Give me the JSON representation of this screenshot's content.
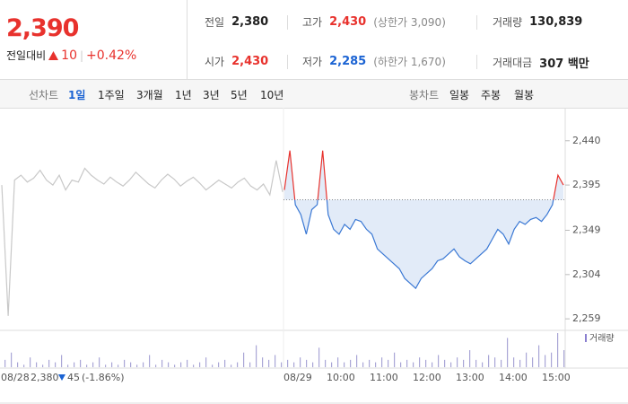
{
  "quote": {
    "price": "2,390",
    "change_label": "전일대비",
    "change": "10",
    "change_rate": "+0.42%"
  },
  "stats": [
    {
      "label": "전일",
      "value": "2,380"
    },
    {
      "label": "고가",
      "value": "2,430",
      "note": "(상한가 3,090)"
    },
    {
      "label": "거래량",
      "value": "130,839"
    },
    {
      "label": "시가",
      "value": "2,430"
    },
    {
      "label": "저가",
      "value": "2,285",
      "note": "(하한가 1,670)"
    },
    {
      "label": "거래대금",
      "value": "307 백만"
    }
  ],
  "line_tabs": {
    "label": "선차트",
    "items": [
      "1일",
      "1주일",
      "3개월",
      "1년",
      "3년",
      "5년",
      "10년"
    ]
  },
  "candle_tabs": {
    "label": "봉차트",
    "items": [
      "일봉",
      "주봉",
      "월봉"
    ]
  },
  "summary": {
    "close": "2,380",
    "change": "45",
    "rate": "(-1.86%)"
  },
  "chart_data": {
    "type": "line",
    "x_labels": [
      "08/28",
      "08/29",
      "10:00",
      "11:00",
      "12:00",
      "13:00",
      "14:00",
      "15:00"
    ],
    "ylim": [
      2250,
      2469
    ],
    "yticks": [
      {
        "value": 2440,
        "label": "2,440"
      },
      {
        "value": 2395,
        "label": "2,395"
      },
      {
        "value": 2349,
        "label": "2,349"
      },
      {
        "value": 2304,
        "label": "2,304"
      },
      {
        "value": 2259,
        "label": "2,259"
      }
    ],
    "reference_line": 2380,
    "series": [
      {
        "color": "#c8c8c8",
        "values": [
          2395,
          2262,
          2400,
          2405,
          2398,
          2402,
          2410,
          2400,
          2395,
          2405,
          2390,
          2400,
          2398,
          2412,
          2405,
          2400,
          2396,
          2403,
          2398,
          2394,
          2400,
          2408,
          2402,
          2396,
          2392,
          2400,
          2406,
          2401,
          2394,
          2399,
          2403,
          2397,
          2390,
          2395,
          2400,
          2396,
          2392,
          2398,
          2402,
          2394,
          2390,
          2396,
          2385,
          2420,
          2388
        ]
      },
      {
        "color": "#3a78d4",
        "up_color": "#e8322d",
        "values": [
          2390,
          2430,
          2375,
          2365,
          2345,
          2370,
          2375,
          2430,
          2365,
          2350,
          2345,
          2355,
          2350,
          2360,
          2358,
          2350,
          2345,
          2330,
          2325,
          2320,
          2315,
          2310,
          2300,
          2295,
          2290,
          2300,
          2305,
          2310,
          2318,
          2320,
          2325,
          2330,
          2322,
          2318,
          2315,
          2320,
          2325,
          2330,
          2340,
          2350,
          2345,
          2335,
          2350,
          2358,
          2355,
          2360,
          2362,
          2358,
          2365,
          2375,
          2405,
          2395
        ]
      }
    ],
    "volume": {
      "name": "거래량",
      "color": "#a9a6d6",
      "values": [
        3,
        6,
        2,
        1,
        4,
        2,
        1,
        3,
        2,
        5,
        1,
        2,
        3,
        1,
        2,
        4,
        1,
        2,
        1,
        3,
        2,
        1,
        2,
        5,
        1,
        3,
        2,
        1,
        2,
        3,
        1,
        2,
        4,
        1,
        2,
        3,
        1,
        2,
        6,
        2,
        9,
        4,
        3,
        5,
        2,
        3,
        2,
        4,
        3,
        2,
        8,
        3,
        2,
        4,
        2,
        3,
        5,
        2,
        3,
        2,
        4,
        3,
        6,
        2,
        3,
        2,
        4,
        3,
        2,
        5,
        3,
        2,
        4,
        3,
        7,
        3,
        2,
        5,
        4,
        3,
        12,
        4,
        3,
        6,
        4,
        9,
        5,
        6,
        14,
        7
      ]
    }
  }
}
